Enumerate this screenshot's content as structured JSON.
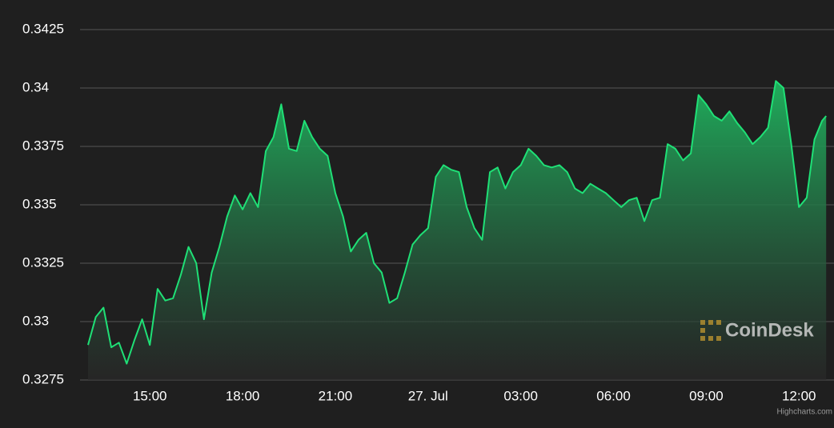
{
  "chart_data": {
    "type": "area",
    "x": [
      13,
      13.25,
      13.5,
      13.75,
      14,
      14.25,
      14.5,
      14.75,
      15,
      15.25,
      15.5,
      15.75,
      16,
      16.25,
      16.5,
      16.75,
      17,
      17.25,
      17.5,
      17.75,
      18,
      18.25,
      18.5,
      18.75,
      19,
      19.25,
      19.5,
      19.75,
      20,
      20.25,
      20.5,
      20.75,
      21,
      21.25,
      21.5,
      21.75,
      22,
      22.25,
      22.5,
      22.75,
      23,
      23.25,
      23.5,
      23.75,
      24,
      24.25,
      24.5,
      24.75,
      25,
      25.25,
      25.5,
      25.75,
      26,
      26.25,
      26.5,
      26.75,
      27,
      27.25,
      27.5,
      27.75,
      28,
      28.25,
      28.5,
      28.75,
      29,
      29.25,
      29.5,
      29.75,
      30,
      30.25,
      30.5,
      30.75,
      31,
      31.25,
      31.5,
      31.75,
      32,
      32.25,
      32.5,
      32.75,
      33,
      33.25,
      33.5,
      33.75,
      34,
      34.25,
      34.5,
      34.75,
      35,
      35.25,
      35.5,
      35.75,
      36,
      36.25,
      36.5,
      36.75,
      36.88
    ],
    "values": [
      0.329,
      0.3302,
      0.3306,
      0.3289,
      0.3291,
      0.3282,
      0.3292,
      0.3301,
      0.329,
      0.3314,
      0.3309,
      0.331,
      0.332,
      0.3332,
      0.3325,
      0.3301,
      0.3321,
      0.3332,
      0.3345,
      0.3354,
      0.3348,
      0.3355,
      0.3349,
      0.3373,
      0.3379,
      0.3393,
      0.3374,
      0.3373,
      0.3386,
      0.3379,
      0.3374,
      0.3371,
      0.3355,
      0.3345,
      0.333,
      0.3335,
      0.3338,
      0.3325,
      0.3321,
      0.3308,
      0.331,
      0.3321,
      0.3333,
      0.3337,
      0.334,
      0.3362,
      0.3367,
      0.3365,
      0.3364,
      0.3349,
      0.334,
      0.3335,
      0.3364,
      0.3366,
      0.3357,
      0.3364,
      0.3367,
      0.3374,
      0.3371,
      0.3367,
      0.3366,
      0.3367,
      0.3364,
      0.3357,
      0.3355,
      0.3359,
      0.3357,
      0.3355,
      0.3352,
      0.3349,
      0.3352,
      0.3353,
      0.3343,
      0.3352,
      0.3353,
      0.3376,
      0.3374,
      0.3369,
      0.3372,
      0.3397,
      0.3393,
      0.3388,
      0.3386,
      0.339,
      0.3385,
      0.3381,
      0.3376,
      0.3379,
      0.3383,
      0.3403,
      0.34,
      0.3376,
      0.3349,
      0.3353,
      0.3378,
      0.3386,
      0.3388
    ],
    "color": "#1fe076",
    "xlim": [
      13,
      36.9
    ],
    "xticks": [
      {
        "value": 15,
        "label": "15:00"
      },
      {
        "value": 18,
        "label": "18:00"
      },
      {
        "value": 21,
        "label": "21:00"
      },
      {
        "value": 24,
        "label": "27. Jul"
      },
      {
        "value": 27,
        "label": "03:00"
      },
      {
        "value": 30,
        "label": "06:00"
      },
      {
        "value": 33,
        "label": "09:00"
      },
      {
        "value": 36,
        "label": "12:00"
      }
    ],
    "ylim": [
      0.3275,
      0.3425
    ],
    "yticks": [
      0.3275,
      0.33,
      0.3325,
      0.335,
      0.3375,
      0.34,
      0.3425
    ],
    "grid": true,
    "watermark": "CoinDesk",
    "credits": "Highcharts.com"
  }
}
